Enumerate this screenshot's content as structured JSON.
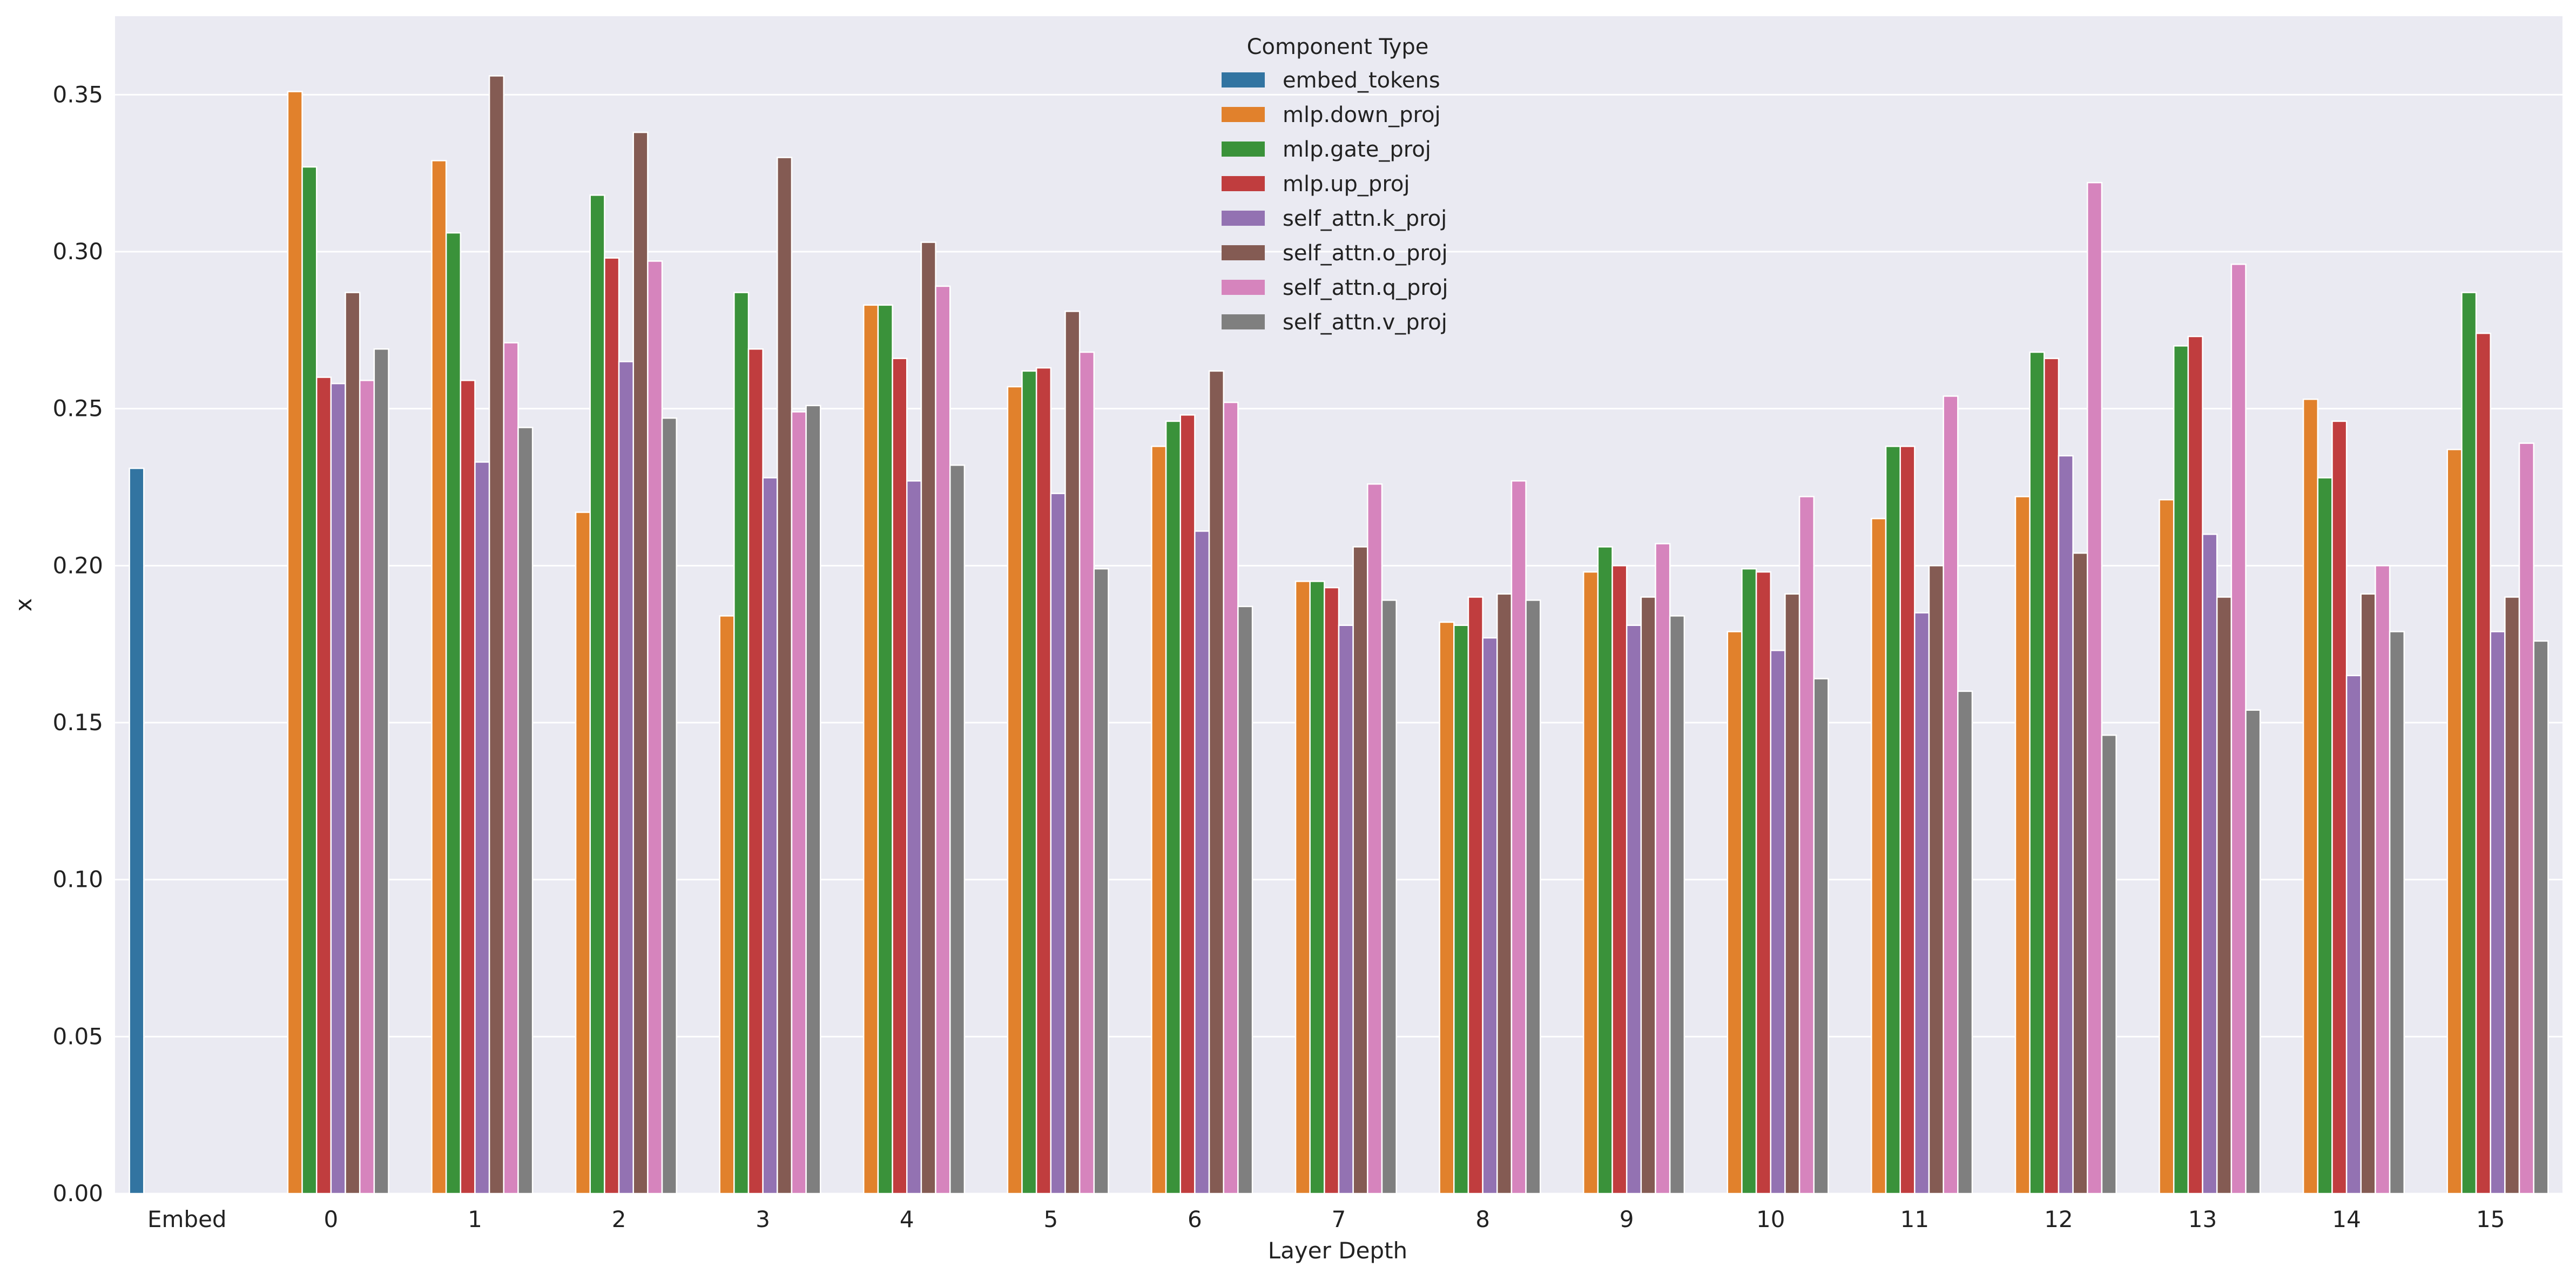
{
  "chart_data": {
    "type": "bar",
    "title": "",
    "xlabel": "Layer Depth",
    "ylabel": "x",
    "ylim": [
      0,
      0.375
    ],
    "yticks": [
      "0.00",
      "0.05",
      "0.10",
      "0.15",
      "0.20",
      "0.25",
      "0.30",
      "0.35"
    ],
    "grid": true,
    "legend": {
      "title": "Component Type",
      "position": "top-center"
    },
    "categories": [
      "Embed",
      "0",
      "1",
      "2",
      "3",
      "4",
      "5",
      "6",
      "7",
      "8",
      "9",
      "10",
      "11",
      "12",
      "13",
      "14",
      "15"
    ],
    "series": [
      {
        "name": "embed_tokens",
        "color": "#3274a1",
        "values": [
          0.231,
          null,
          null,
          null,
          null,
          null,
          null,
          null,
          null,
          null,
          null,
          null,
          null,
          null,
          null,
          null,
          null
        ]
      },
      {
        "name": "mlp.down_proj",
        "color": "#e1812c",
        "values": [
          null,
          0.351,
          0.329,
          0.217,
          0.184,
          0.283,
          0.257,
          0.238,
          0.195,
          0.182,
          0.198,
          0.179,
          0.215,
          0.222,
          0.221,
          0.253,
          0.237
        ]
      },
      {
        "name": "mlp.gate_proj",
        "color": "#3a923a",
        "values": [
          null,
          0.327,
          0.306,
          0.318,
          0.287,
          0.283,
          0.262,
          0.246,
          0.195,
          0.181,
          0.206,
          0.199,
          0.238,
          0.268,
          0.27,
          0.228,
          0.287
        ]
      },
      {
        "name": "mlp.up_proj",
        "color": "#c03d3e",
        "values": [
          null,
          0.26,
          0.259,
          0.298,
          0.269,
          0.266,
          0.263,
          0.248,
          0.193,
          0.19,
          0.2,
          0.198,
          0.238,
          0.266,
          0.273,
          0.246,
          0.274
        ]
      },
      {
        "name": "self_attn.k_proj",
        "color": "#9372b2",
        "values": [
          null,
          0.258,
          0.233,
          0.265,
          0.228,
          0.227,
          0.223,
          0.211,
          0.181,
          0.177,
          0.181,
          0.173,
          0.185,
          0.235,
          0.21,
          0.165,
          0.179
        ]
      },
      {
        "name": "self_attn.o_proj",
        "color": "#845b53",
        "values": [
          null,
          0.287,
          0.356,
          0.338,
          0.33,
          0.303,
          0.281,
          0.262,
          0.206,
          0.191,
          0.19,
          0.191,
          0.2,
          0.204,
          0.19,
          0.191,
          0.19
        ]
      },
      {
        "name": "self_attn.q_proj",
        "color": "#d684bd",
        "values": [
          null,
          0.259,
          0.271,
          0.297,
          0.249,
          0.289,
          0.268,
          0.252,
          0.226,
          0.227,
          0.207,
          0.222,
          0.254,
          0.322,
          0.296,
          0.2,
          0.239
        ]
      },
      {
        "name": "self_attn.v_proj",
        "color": "#7f7f7f",
        "values": [
          null,
          0.269,
          0.244,
          0.247,
          0.251,
          0.232,
          0.199,
          0.187,
          0.189,
          0.189,
          0.184,
          0.164,
          0.16,
          0.146,
          0.154,
          0.179,
          0.176
        ]
      }
    ]
  }
}
